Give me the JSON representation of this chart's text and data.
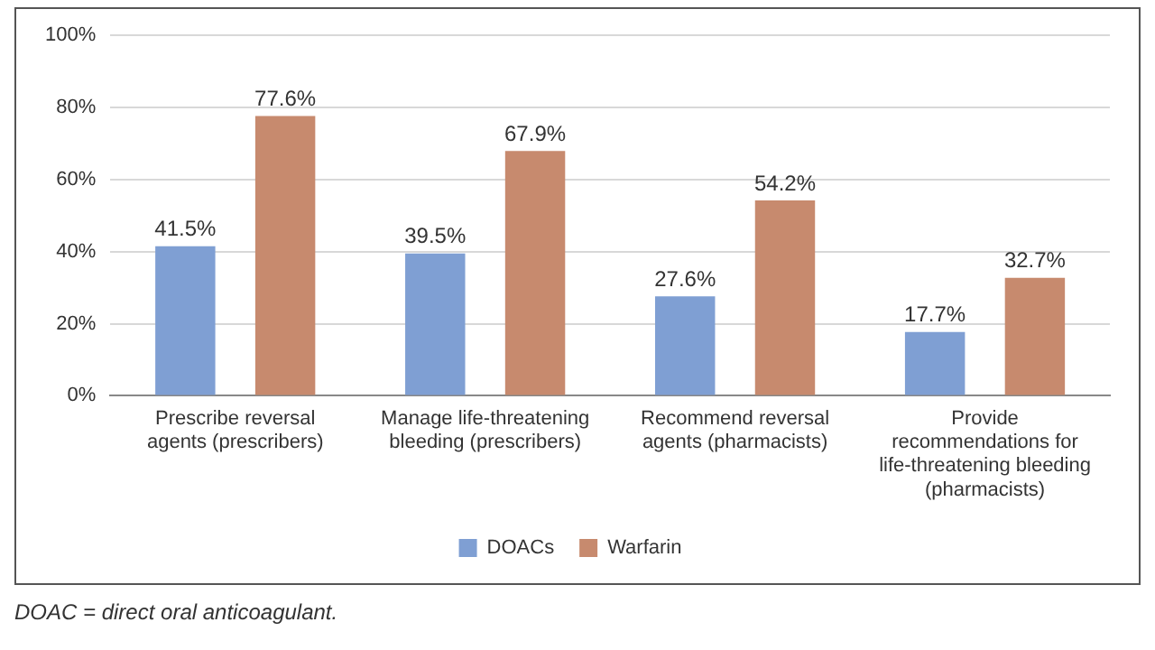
{
  "chart_data": {
    "type": "bar",
    "categories": [
      "Prescribe reversal agents (prescribers)",
      "Manage life-threatening bleeding (prescribers)",
      "Recommend reversal agents (pharmacists)",
      "Provide recommendations for life-threatening bleeding (pharmacists)"
    ],
    "series": [
      {
        "name": "DOACs",
        "color": "#7f9fd3",
        "values": [
          41.5,
          39.5,
          27.6,
          17.7
        ],
        "value_labels": [
          "41.5%",
          "39.5%",
          "27.6%",
          "17.7%"
        ]
      },
      {
        "name": "Warfarin",
        "color": "#c78a6e",
        "values": [
          77.6,
          67.9,
          54.2,
          32.7
        ],
        "value_labels": [
          "77.6%",
          "67.9%",
          "54.2%",
          "32.7%"
        ]
      }
    ],
    "ylim": [
      0,
      100
    ],
    "yticks": [
      {
        "value": 0,
        "label": "0%"
      },
      {
        "value": 20,
        "label": "20%"
      },
      {
        "value": 40,
        "label": "40%"
      },
      {
        "value": 60,
        "label": "60%"
      },
      {
        "value": 80,
        "label": "80%"
      },
      {
        "value": 100,
        "label": "100%"
      }
    ],
    "grid": "y",
    "legend": "bottom",
    "annotations": [
      "DOAC = direct oral anticoagulant."
    ]
  }
}
